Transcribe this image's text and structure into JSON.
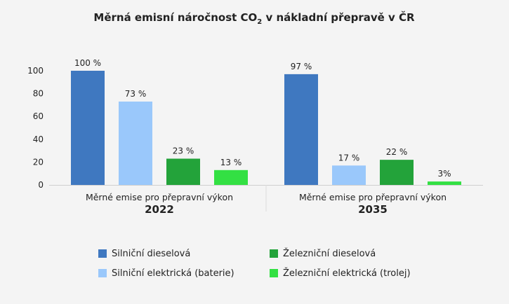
{
  "chart_data": {
    "type": "bar",
    "title": "Měrná emisní náročnost CO",
    "title_subscript": "2",
    "title_suffix": " v nákladní přepravě v ČR",
    "ylim": [
      0,
      100
    ],
    "yticks": [
      "0",
      "20",
      "40",
      "60",
      "80",
      "100"
    ],
    "ytick_values": [
      0,
      20,
      40,
      60,
      80,
      100
    ],
    "groups": [
      {
        "label": "Měrné emise pro přepravní výkon",
        "year": "2022"
      },
      {
        "label": "Měrné emise pro přepravní výkon",
        "year": "2035"
      }
    ],
    "series": [
      {
        "name": "Silniční dieselová",
        "color": "#3f78c0",
        "values": [
          100,
          97
        ],
        "labels": [
          "100 %",
          "97 %"
        ]
      },
      {
        "name": "Silniční elektrická (baterie)",
        "color": "#9ac8fb",
        "values": [
          73,
          17
        ],
        "labels": [
          "73 %",
          "17 %"
        ]
      },
      {
        "name": "Železniční dieselová",
        "color": "#23a33a",
        "values": [
          23,
          22
        ],
        "labels": [
          "23 %",
          "22 %"
        ]
      },
      {
        "name": "Železniční elektrická (trolej)",
        "color": "#33e043",
        "values": [
          13,
          3
        ],
        "labels": [
          "13 %",
          "3%"
        ]
      }
    ],
    "legend_position": "bottom",
    "grid": false
  }
}
